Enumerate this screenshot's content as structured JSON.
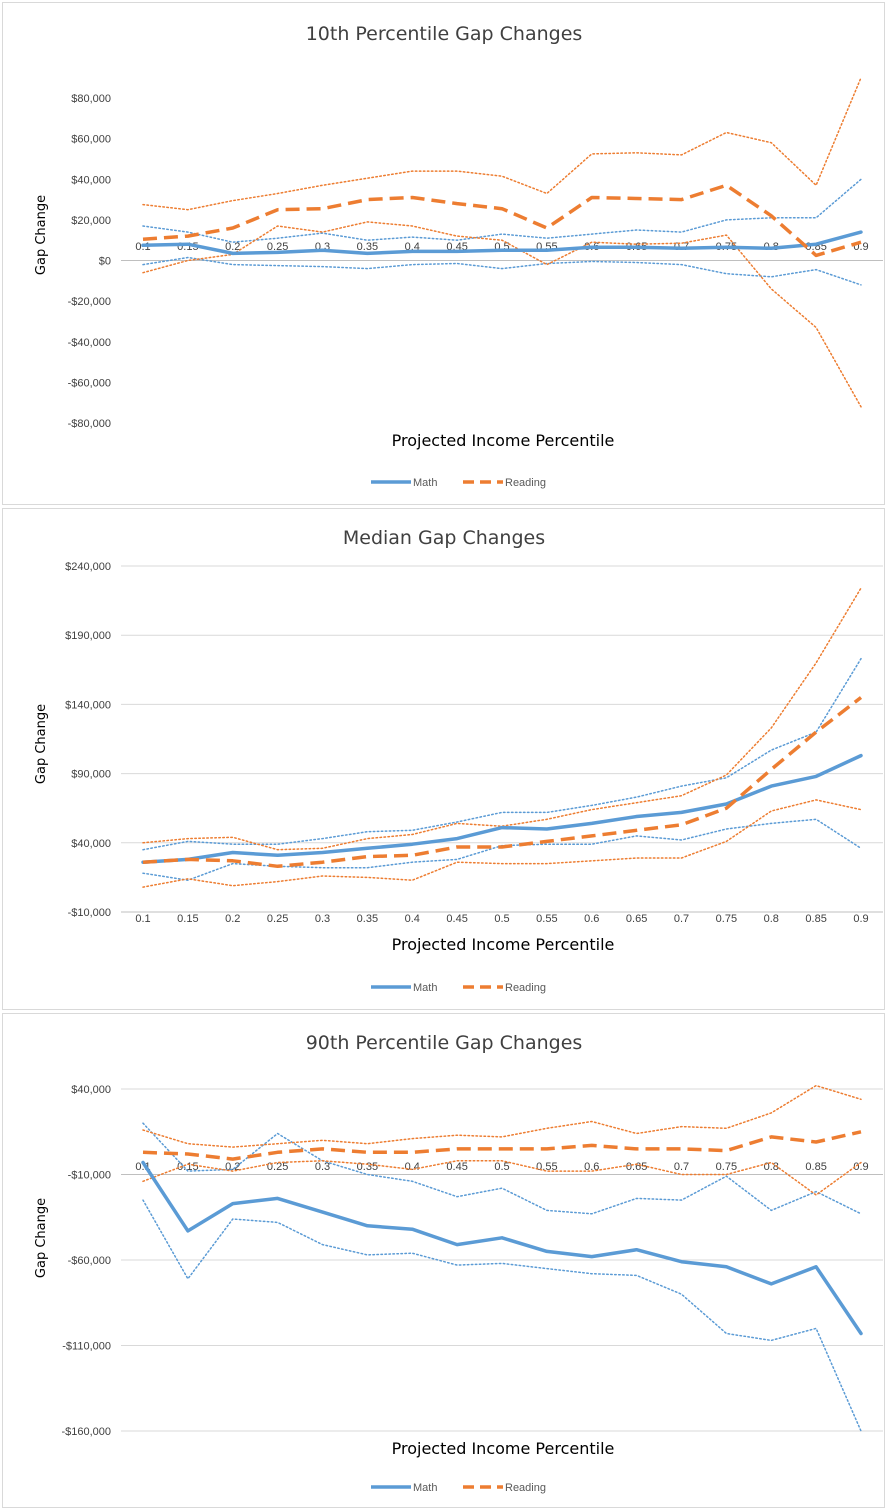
{
  "chart_data": [
    {
      "type": "line",
      "title": "10th Percentile Gap Changes",
      "xlabel": "Projected Income Percentile",
      "ylabel": "Gap Change",
      "categories": [
        "0.1",
        "0.15",
        "0.2",
        "0.25",
        "0.3",
        "0.35",
        "0.4",
        "0.45",
        "0.5",
        "0.55",
        "0.6",
        "0.65",
        "0.7",
        "0.75",
        "0.8",
        "0.85",
        "0.9"
      ],
      "ylim": [
        -80000,
        80000
      ],
      "yticks": [
        80000,
        60000,
        40000,
        20000,
        0,
        -20000,
        -40000,
        -60000,
        -80000
      ],
      "ytick_labels": [
        "$80,000",
        "$60,000",
        "$40,000",
        "$20,000",
        "$0",
        "-$20,000",
        "-$40,000",
        "-$60,000",
        "-$80,000"
      ],
      "grid": false,
      "legend": "bottom",
      "series": [
        {
          "name": "Math",
          "role": "estimate",
          "color": "#5b9bd5",
          "style": "solid",
          "values": [
            7500,
            8000,
            3500,
            4000,
            5000,
            3500,
            4500,
            4500,
            5000,
            5000,
            6500,
            6500,
            6000,
            6500,
            6000,
            8000,
            14000
          ]
        },
        {
          "name": "Reading",
          "role": "estimate",
          "color": "#ed7d31",
          "style": "dashed",
          "values": [
            10500,
            12000,
            16000,
            25000,
            25500,
            30000,
            31000,
            28000,
            25500,
            16000,
            31000,
            30500,
            30000,
            37000,
            22000,
            2500,
            9000
          ]
        },
        {
          "name": "",
          "role": "math-upper",
          "color": "#5b9bd5",
          "style": "dotted",
          "values": [
            17000,
            14000,
            9000,
            11000,
            13500,
            10000,
            11500,
            10000,
            13000,
            11000,
            13000,
            15000,
            14000,
            20000,
            21000,
            21000,
            40000
          ]
        },
        {
          "name": "",
          "role": "math-lower",
          "color": "#5b9bd5",
          "style": "dotted",
          "values": [
            -2000,
            1500,
            -2000,
            -2500,
            -3000,
            -4000,
            -2000,
            -1500,
            -4000,
            -1500,
            -500,
            -1000,
            -2000,
            -6500,
            -8000,
            -4500,
            -12000
          ]
        },
        {
          "name": "",
          "role": "reading-upper",
          "color": "#ed7d31",
          "style": "dotted",
          "values": [
            27500,
            25000,
            29500,
            33000,
            37000,
            40500,
            44000,
            44000,
            41500,
            33000,
            52500,
            53000,
            52000,
            63000,
            58000,
            37000,
            90000
          ]
        },
        {
          "name": "",
          "role": "reading-lower",
          "color": "#ed7d31",
          "style": "dotted",
          "values": [
            -6000,
            0,
            3000,
            17000,
            14000,
            19000,
            17000,
            12000,
            10000,
            -2000,
            9000,
            8000,
            8500,
            12500,
            -14000,
            -33000,
            -72000
          ]
        }
      ]
    },
    {
      "type": "line",
      "title": "Median Gap Changes",
      "xlabel": "Projected Income Percentile",
      "ylabel": "Gap Change",
      "categories": [
        "0.1",
        "0.15",
        "0.2",
        "0.25",
        "0.3",
        "0.35",
        "0.4",
        "0.45",
        "0.5",
        "0.55",
        "0.6",
        "0.65",
        "0.7",
        "0.75",
        "0.8",
        "0.85",
        "0.9"
      ],
      "ylim": [
        -10000,
        240000
      ],
      "yticks": [
        240000,
        190000,
        140000,
        90000,
        40000,
        -10000
      ],
      "ytick_labels": [
        "$240,000",
        "$190,000",
        "$140,000",
        "$90,000",
        "$40,000",
        "-$10,000"
      ],
      "grid": true,
      "legend": "bottom",
      "series": [
        {
          "name": "Math",
          "role": "estimate",
          "color": "#5b9bd5",
          "style": "solid",
          "values": [
            26000,
            28000,
            33000,
            31000,
            33000,
            36000,
            39000,
            43000,
            51000,
            50000,
            54000,
            59000,
            62000,
            68000,
            81000,
            88000,
            103000
          ]
        },
        {
          "name": "Reading",
          "role": "estimate",
          "color": "#ed7d31",
          "style": "dashed",
          "values": [
            26000,
            28000,
            27000,
            23000,
            26000,
            30000,
            31000,
            37000,
            37000,
            41000,
            45000,
            49000,
            53000,
            65000,
            93000,
            120000,
            145000
          ]
        },
        {
          "name": "",
          "role": "math-upper",
          "color": "#5b9bd5",
          "style": "dotted",
          "values": [
            35000,
            41000,
            39000,
            39000,
            43000,
            48000,
            49000,
            55000,
            62000,
            62000,
            67000,
            73000,
            81000,
            87000,
            107000,
            120000,
            173000
          ]
        },
        {
          "name": "",
          "role": "math-lower",
          "color": "#5b9bd5",
          "style": "dotted",
          "values": [
            18000,
            13000,
            25000,
            23000,
            22000,
            22000,
            26000,
            28000,
            38000,
            39000,
            39000,
            45000,
            42000,
            50000,
            54000,
            57000,
            36000
          ]
        },
        {
          "name": "",
          "role": "reading-upper",
          "color": "#ed7d31",
          "style": "dotted",
          "values": [
            40000,
            43000,
            44000,
            35000,
            36000,
            43000,
            46000,
            54000,
            52000,
            57000,
            64000,
            69000,
            74000,
            89000,
            123000,
            170000,
            224000
          ]
        },
        {
          "name": "",
          "role": "reading-lower",
          "color": "#ed7d31",
          "style": "dotted",
          "values": [
            8000,
            14000,
            9000,
            12000,
            16000,
            15000,
            13000,
            26000,
            25000,
            25000,
            27000,
            29000,
            29000,
            41000,
            63000,
            71000,
            64000
          ]
        }
      ]
    },
    {
      "type": "line",
      "title": "90th Percentile Gap Changes",
      "xlabel": "Projected Income Percentile",
      "ylabel": "Gap Change",
      "categories": [
        "0.1",
        "0.15",
        "0.2",
        "0.25",
        "0.3",
        "0.35",
        "0.4",
        "0.45",
        "0.5",
        "0.55",
        "0.6",
        "0.65",
        "0.7",
        "0.75",
        "0.8",
        "0.85",
        "0.9"
      ],
      "ylim": [
        -160000,
        40000
      ],
      "yticks": [
        40000,
        -10000,
        -60000,
        -110000,
        -160000
      ],
      "ytick_labels": [
        "$40,000",
        "-$10,000",
        "-$60,000",
        "-$110,000",
        "-$160,000"
      ],
      "grid": true,
      "legend": "bottom",
      "series": [
        {
          "name": "Math",
          "role": "estimate",
          "color": "#5b9bd5",
          "style": "solid",
          "values": [
            -3000,
            -43000,
            -27000,
            -24000,
            -32000,
            -40000,
            -42000,
            -51000,
            -47000,
            -55000,
            -58000,
            -54000,
            -61000,
            -64000,
            -74000,
            -64000,
            -103000
          ]
        },
        {
          "name": "Reading",
          "role": "estimate",
          "color": "#ed7d31",
          "style": "dashed",
          "values": [
            3000,
            2000,
            -1000,
            3000,
            5000,
            3000,
            3000,
            5000,
            5000,
            5000,
            7000,
            5000,
            5000,
            4000,
            12000,
            9000,
            15000
          ]
        },
        {
          "name": "",
          "role": "math-upper",
          "color": "#5b9bd5",
          "style": "dotted",
          "values": [
            20000,
            -8000,
            -7000,
            14000,
            -2000,
            -10000,
            -14000,
            -23000,
            -18000,
            -31000,
            -33000,
            -24000,
            -25000,
            -11000,
            -31000,
            -20000,
            -33000
          ]
        },
        {
          "name": "",
          "role": "math-lower",
          "color": "#5b9bd5",
          "style": "dotted",
          "values": [
            -25000,
            -71000,
            -36000,
            -38000,
            -51000,
            -57000,
            -56000,
            -63000,
            -62000,
            -65000,
            -68000,
            -69000,
            -80000,
            -103000,
            -107000,
            -100000,
            -160000
          ]
        },
        {
          "name": "",
          "role": "reading-upper",
          "color": "#ed7d31",
          "style": "dotted",
          "values": [
            16000,
            8000,
            6000,
            8000,
            10000,
            8000,
            11000,
            13000,
            12000,
            17000,
            21000,
            14000,
            18000,
            17000,
            26000,
            42000,
            34000
          ]
        },
        {
          "name": "",
          "role": "reading-lower",
          "color": "#ed7d31",
          "style": "dotted",
          "values": [
            -14000,
            -4000,
            -8000,
            -3000,
            -2000,
            -4000,
            -7000,
            -2000,
            -2000,
            -8000,
            -8000,
            -4000,
            -10000,
            -10000,
            -3000,
            -22000,
            -3000
          ]
        }
      ]
    }
  ]
}
